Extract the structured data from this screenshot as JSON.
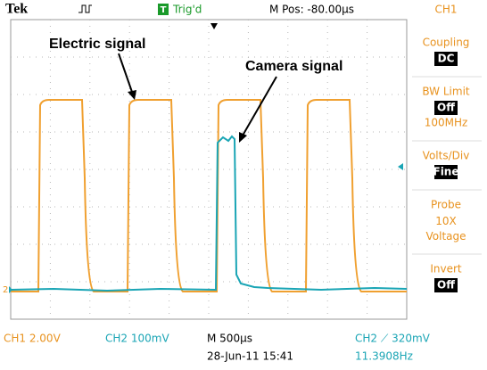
{
  "header": {
    "brand": "Tek",
    "trigger_icon": "T",
    "trigger_status": "Trig'd",
    "position": "M Pos: -80.00µs",
    "channel": "CH1"
  },
  "side_panel": [
    {
      "label": "Coupling",
      "setting": "DC"
    },
    {
      "label": "BW Limit",
      "setting": "Off",
      "detail": "100MHz"
    },
    {
      "label": "Volts/Div",
      "setting": "Fine"
    },
    {
      "label": "Probe",
      "detail": "10X Voltage"
    },
    {
      "label": "Invert",
      "setting": "Off"
    }
  ],
  "footer": {
    "ch1_scale": "CH1  2.00V",
    "ch2_scale": "CH2  100mV",
    "timebase": "M 500µs",
    "trigger": "CH2 ⟋ 320mV",
    "date": "28-Jun-11 15:41",
    "frequency": "11.3908Hz"
  },
  "annotations": {
    "electric": "Electric signal",
    "camera": "Camera signal"
  },
  "markers": {
    "ch2": "2"
  }
}
